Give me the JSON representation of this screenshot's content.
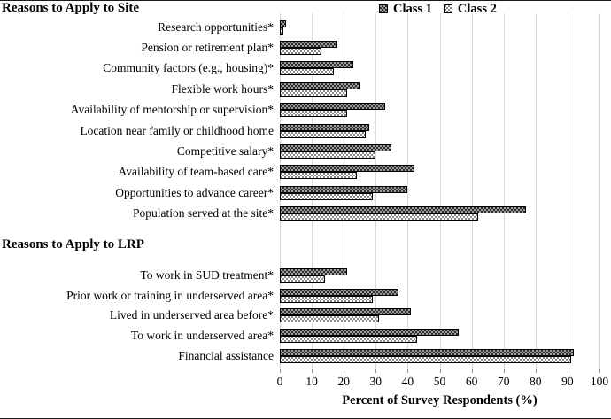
{
  "legend": {
    "items": [
      {
        "label": "Class 1",
        "swatch": "dark-checker-pattern"
      },
      {
        "label": "Class 2",
        "swatch": "white-dot-pattern"
      }
    ]
  },
  "chart_data": {
    "type": "bar",
    "orientation": "horizontal",
    "xlabel": "Percent of Survey Respondents (%)",
    "xlim": [
      0,
      100
    ],
    "xticks": [
      0,
      10,
      20,
      30,
      40,
      50,
      60,
      70,
      80,
      90,
      100
    ],
    "grid": "vertical light gray gridlines at each 10%",
    "legend_position": "top-center",
    "series_names": [
      "Class 1",
      "Class 2"
    ],
    "sections": [
      {
        "title": "Reasons to Apply to Site",
        "rows": [
          {
            "label": "Research opportunities*",
            "values": [
              2,
              1
            ]
          },
          {
            "label": "Pension or retirement plan*",
            "values": [
              18,
              13
            ]
          },
          {
            "label": "Community factors (e.g., housing)*",
            "values": [
              23,
              17
            ]
          },
          {
            "label": "Flexible work hours*",
            "values": [
              25,
              21
            ]
          },
          {
            "label": "Availability of mentorship or supervision*",
            "values": [
              33,
              21
            ]
          },
          {
            "label": "Location near family or childhood home",
            "values": [
              28,
              27
            ]
          },
          {
            "label": "Competitive salary*",
            "values": [
              35,
              30
            ]
          },
          {
            "label": "Availability of team-based care*",
            "values": [
              42,
              24
            ]
          },
          {
            "label": "Opportunities to advance career*",
            "values": [
              40,
              29
            ]
          },
          {
            "label": "Population served at the site*",
            "values": [
              77,
              62
            ]
          }
        ]
      },
      {
        "title": "Reasons to Apply to LRP",
        "rows": [
          {
            "label": "To work in SUD treatment*",
            "values": [
              21,
              14
            ]
          },
          {
            "label": "Prior work or training in underserved area*",
            "values": [
              37,
              29
            ]
          },
          {
            "label": "Lived in underserved area before*",
            "values": [
              41,
              31
            ]
          },
          {
            "label": "To work in underserved area*",
            "values": [
              56,
              43
            ]
          },
          {
            "label": "Financial assistance",
            "values": [
              92,
              91
            ]
          }
        ]
      }
    ]
  },
  "colors": {
    "class1_pattern_dark": "#2e2e2e",
    "class1_pattern_light": "#9c9c9c",
    "class2_background": "#ffffff",
    "class2_dot": "#4a4a4a",
    "bar_border": "#000000",
    "gridline": "#d9d9d9",
    "text": "#000000"
  }
}
